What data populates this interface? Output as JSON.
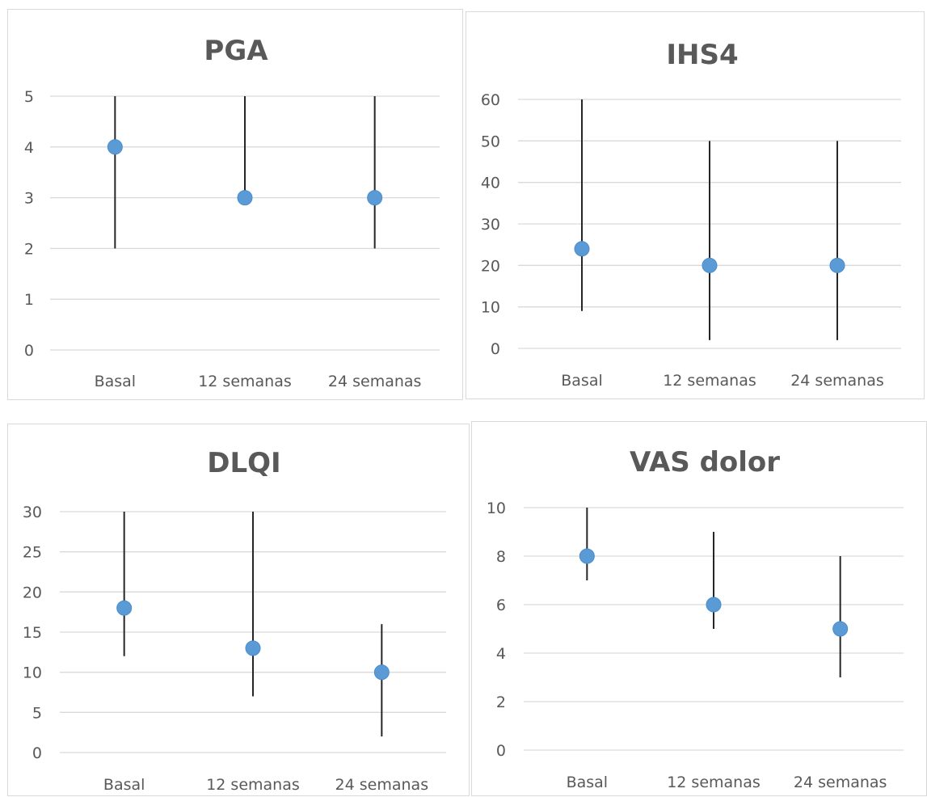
{
  "colors": {
    "marker": "#5b9bd5",
    "whisker": "#262626",
    "grid": "#d9d9d9",
    "text": "#595959"
  },
  "chart_data": [
    {
      "type": "scatter",
      "title": "PGA",
      "categories": [
        "Basal",
        "12 semanas",
        "24 semanas"
      ],
      "median": [
        4,
        3,
        3
      ],
      "low": [
        2,
        3,
        2
      ],
      "high": [
        5,
        5,
        5
      ],
      "yticks": [
        "0",
        "1",
        "2",
        "3",
        "4",
        "5"
      ],
      "ylim": [
        0,
        5
      ],
      "grid": true,
      "legend": "none"
    },
    {
      "type": "scatter",
      "title": "IHS4",
      "categories": [
        "Basal",
        "12 semanas",
        "24 semanas"
      ],
      "median": [
        24,
        20,
        20
      ],
      "low": [
        9,
        2,
        2
      ],
      "high": [
        60,
        50,
        50
      ],
      "yticks": [
        "0",
        "10",
        "20",
        "30",
        "40",
        "50",
        "60"
      ],
      "ylim": [
        0,
        60
      ],
      "grid": true,
      "legend": "none"
    },
    {
      "type": "scatter",
      "title": "DLQI",
      "categories": [
        "Basal",
        "12 semanas",
        "24 semanas"
      ],
      "median": [
        18,
        13,
        10
      ],
      "low": [
        12,
        7,
        2
      ],
      "high": [
        30,
        30,
        16
      ],
      "yticks": [
        "0",
        "5",
        "10",
        "15",
        "20",
        "25",
        "30"
      ],
      "ylim": [
        0,
        30
      ],
      "grid": true,
      "legend": "none"
    },
    {
      "type": "scatter",
      "title": "VAS dolor",
      "categories": [
        "Basal",
        "12 semanas",
        "24 semanas"
      ],
      "median": [
        8,
        6,
        5
      ],
      "low": [
        7,
        5,
        3
      ],
      "high": [
        10,
        9,
        8
      ],
      "yticks": [
        "0",
        "2",
        "4",
        "6",
        "8",
        "10"
      ],
      "ylim": [
        0,
        10
      ],
      "grid": true,
      "legend": "none"
    }
  ]
}
